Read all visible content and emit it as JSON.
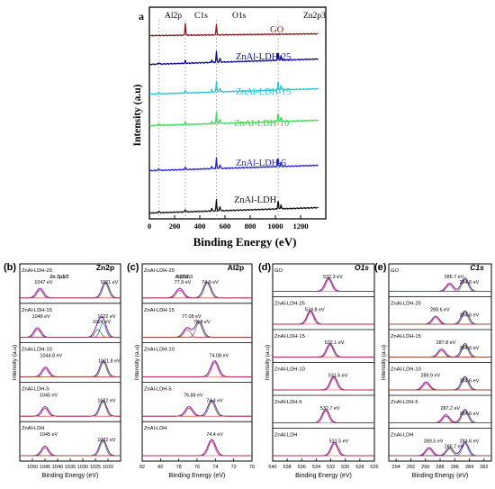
{
  "chart_data": [
    {
      "id": "a",
      "type": "line",
      "panel_label": "a",
      "xlabel": "Binding Energy (eV)",
      "ylabel": "Intensity (a.u)",
      "xlim": [
        0,
        1400
      ],
      "xticks": [
        0,
        200,
        400,
        600,
        800,
        1000,
        1200
      ],
      "reference_lines": [
        {
          "label": "Al2p",
          "x": 75
        },
        {
          "label": "C1s",
          "x": 285
        },
        {
          "label": "O1s",
          "x": 532
        },
        {
          "label": "Zn2p3",
          "x": 1022
        }
      ],
      "series": [
        {
          "name": "GO",
          "color": "#8B1A1A"
        },
        {
          "name": "ZnAl-LDH-25",
          "color": "#0a0a9a"
        },
        {
          "name": "ZnAl-LDH-15",
          "color": "#22c6d6"
        },
        {
          "name": "ZnAl-LDH-10",
          "color": "#33dd55"
        },
        {
          "name": "ZnAl-LDH-5",
          "color": "#2222dd"
        },
        {
          "name": "ZnAl-LDH",
          "color": "#111111"
        }
      ]
    },
    {
      "id": "b",
      "type": "line",
      "panel_label": "(b)",
      "element_label": "Zn2p",
      "xlabel": "Binding Energy (eV)",
      "ylabel": "Intensity (a.u)",
      "xlim": [
        1055,
        1015
      ],
      "xticks": [
        1050,
        1045,
        1040,
        1035,
        1030,
        1025,
        1020
      ],
      "traces": [
        {
          "name": "ZnAl-LDH-25",
          "peaks": [
            "Zn 2p1/2",
            "1047 eV",
            "Zn 2p3/2",
            "1021 eV"
          ]
        },
        {
          "name": "ZnAl-LDH-15",
          "peaks": [
            "1048 eV",
            "1024 eV",
            "1022 eV"
          ]
        },
        {
          "name": "ZnAl-LDH-10",
          "peaks": [
            "1044.8 eV",
            "1021.8 eV"
          ]
        },
        {
          "name": "ZnAl-LDH-5",
          "peaks": [
            "1045 eV",
            "1022 eV"
          ]
        },
        {
          "name": "ZnAl-LDH",
          "peaks": [
            "1045 eV",
            "1022 eV"
          ]
        }
      ]
    },
    {
      "id": "c",
      "type": "line",
      "panel_label": "(c)",
      "element_label": "Al2p",
      "xlabel": "Binding Energy (eV)",
      "ylabel": "Intensity (a.u)",
      "xlim": [
        82,
        70
      ],
      "xticks": [
        82,
        80,
        78,
        76,
        74,
        72,
        70
      ],
      "traces": [
        {
          "name": "ZnAl-LDH-25",
          "peaks": [
            "Al2O3",
            "77.9 eV",
            "Al(OH)3",
            "74.9 eV"
          ]
        },
        {
          "name": "ZnAl-LDH-15",
          "peaks": [
            "77.08 eV",
            "75.8 eV"
          ]
        },
        {
          "name": "ZnAl-LDH-10",
          "peaks": [
            "74.08 eV"
          ]
        },
        {
          "name": "ZnAl-LDH-5",
          "peaks": [
            "76.88 eV",
            "74.4 eV"
          ]
        },
        {
          "name": "ZnAl-LDH",
          "peaks": [
            "74.4 eV"
          ]
        }
      ]
    },
    {
      "id": "d",
      "type": "line",
      "panel_label": "(d)",
      "element_label": "O1s",
      "xlabel": "Binding Energy (eV)",
      "ylabel": "Intensity (a.u)",
      "xlim": [
        540,
        526
      ],
      "xticks": [
        540,
        538,
        536,
        534,
        532,
        530,
        528,
        526
      ],
      "traces": [
        {
          "name": "GO",
          "peaks": [
            "532.3 eV"
          ]
        },
        {
          "name": "ZnAl-LDH-25",
          "peaks": [
            "534.8 eV"
          ]
        },
        {
          "name": "ZnAl-LDH-15",
          "peaks": [
            "532.1 eV"
          ]
        },
        {
          "name": "ZnAl-LDH-10",
          "peaks": [
            "531.6 eV"
          ]
        },
        {
          "name": "ZnAl-LDH-5",
          "peaks": [
            "532.7 eV"
          ]
        },
        {
          "name": "ZnAl-LDH",
          "peaks": [
            "531.5 eV"
          ]
        }
      ]
    },
    {
      "id": "e",
      "type": "line",
      "panel_label": "(e)",
      "element_label": "C1s",
      "xlabel": "Binding Energy (eV)",
      "ylabel": "Intensity (a.u)",
      "xlim": [
        295,
        281
      ],
      "xticks": [
        294,
        292,
        290,
        288,
        286,
        284,
        282
      ],
      "traces": [
        {
          "name": "GO",
          "peaks": [
            "286.7 eV",
            "284.6 eV"
          ]
        },
        {
          "name": "ZnAl-LDH-25",
          "peaks": [
            "288.6 eV",
            "284.6 eV"
          ]
        },
        {
          "name": "ZnAl-LDH-15",
          "peaks": [
            "287.8 eV",
            "284.6 eV"
          ]
        },
        {
          "name": "ZnAl-LDH-10",
          "peaks": [
            "289.9 eV",
            "284.6 eV"
          ]
        },
        {
          "name": "ZnAl-LDH-5",
          "peaks": [
            "287.2 eV",
            "284.6 eV"
          ]
        },
        {
          "name": "ZnAl-LDH",
          "peaks": [
            "289.5 eV",
            "286.7 eV",
            "284.6 eV"
          ]
        }
      ]
    }
  ]
}
